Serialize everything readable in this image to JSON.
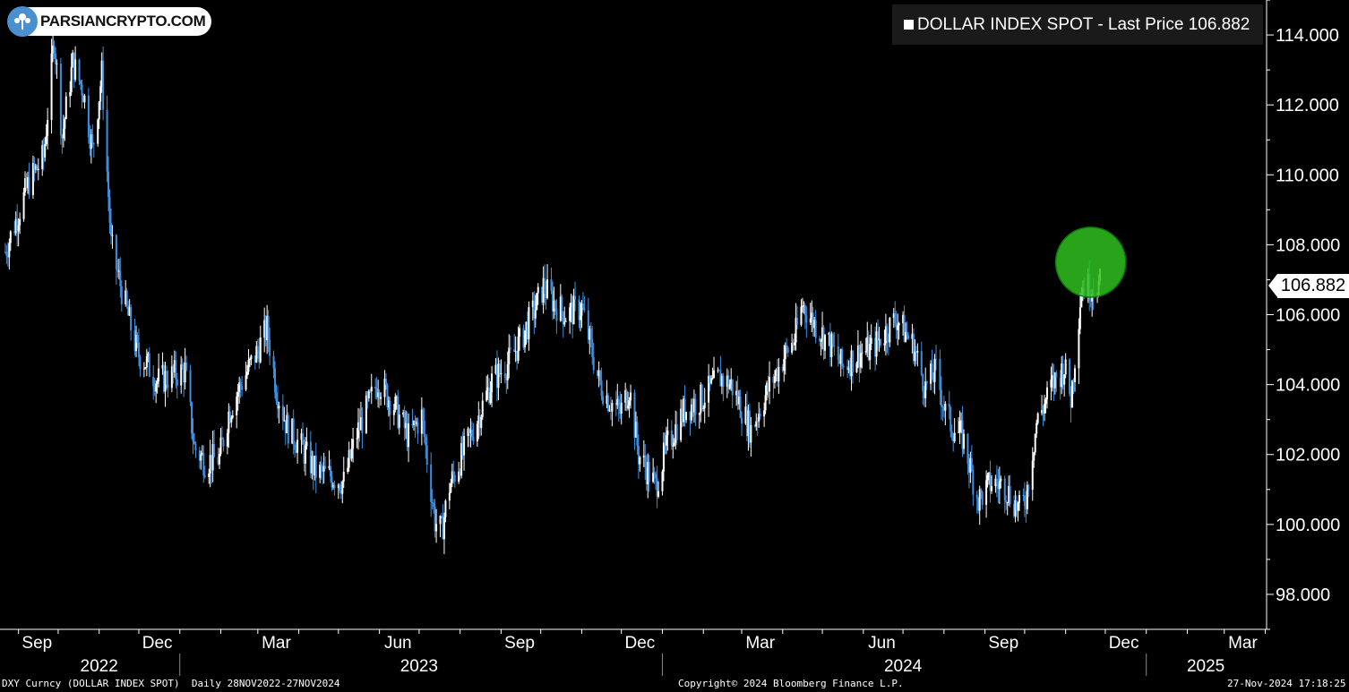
{
  "logo": {
    "text": "PARSIANCRYPTO.COM"
  },
  "legend": {
    "text": "DOLLAR INDEX SPOT - Last Price 106.882"
  },
  "last_price_label": "106.882",
  "footer": {
    "left": "DXY Curncy (DOLLAR INDEX SPOT)  Daily 28NOV2022-27NOV2024",
    "center": "Copyright© 2024 Bloomberg Finance L.P.",
    "right": "27-Nov-2024 17:18:25"
  },
  "colors": {
    "background": "#000000",
    "candle_up": "#ffffff",
    "candle_down": "#3d8fe0",
    "highlight": "#2fbf1f"
  },
  "chart_data": {
    "type": "line",
    "style": "candlestick",
    "series": [
      {
        "name": "DOLLAR INDEX SPOT",
        "x": [
          "2022-08-22",
          "2022-09-01",
          "2022-09-09",
          "2022-09-20",
          "2022-09-28",
          "2022-10-04",
          "2022-10-12",
          "2022-10-20",
          "2022-10-27",
          "2022-11-03",
          "2022-11-10",
          "2022-11-18",
          "2022-11-30",
          "2022-12-07",
          "2022-12-15",
          "2022-12-22",
          "2023-01-05",
          "2023-01-12",
          "2023-01-20",
          "2023-01-31",
          "2023-02-07",
          "2023-02-16",
          "2023-02-28",
          "2023-03-08",
          "2023-03-15",
          "2023-03-23",
          "2023-04-03",
          "2023-04-14",
          "2023-04-25",
          "2023-05-05",
          "2023-05-15",
          "2023-05-31",
          "2023-06-12",
          "2023-06-23",
          "2023-07-03",
          "2023-07-13",
          "2023-07-18",
          "2023-07-24",
          "2023-08-03",
          "2023-08-15",
          "2023-08-25",
          "2023-09-06",
          "2023-09-15",
          "2023-09-27",
          "2023-10-03",
          "2023-10-12",
          "2023-10-20",
          "2023-11-01",
          "2023-11-14",
          "2023-11-21",
          "2023-11-30",
          "2023-12-07",
          "2023-12-14",
          "2023-12-27",
          "2024-01-05",
          "2024-01-18",
          "2024-01-31",
          "2024-02-14",
          "2024-02-22",
          "2024-03-08",
          "2024-03-19",
          "2024-04-02",
          "2024-04-10",
          "2024-04-16",
          "2024-04-26",
          "2024-05-06",
          "2024-05-16",
          "2024-05-29",
          "2024-06-07",
          "2024-06-26",
          "2024-07-09",
          "2024-07-18",
          "2024-07-26",
          "2024-08-02",
          "2024-08-07",
          "2024-08-15",
          "2024-08-27",
          "2024-09-06",
          "2024-09-16",
          "2024-09-27",
          "2024-10-02",
          "2024-10-10",
          "2024-10-22",
          "2024-10-31",
          "2024-11-05",
          "2024-11-13",
          "2024-11-20",
          "2024-11-27"
        ],
        "values": [
          107.8,
          108.9,
          109.8,
          110.5,
          113.9,
          111.1,
          113.2,
          112.4,
          110.7,
          112.9,
          108.0,
          106.7,
          104.9,
          104.6,
          104.1,
          104.2,
          104.4,
          102.2,
          101.8,
          101.9,
          103.2,
          104.0,
          104.9,
          105.6,
          103.9,
          102.8,
          102.2,
          101.5,
          101.4,
          101.2,
          102.6,
          104.1,
          103.4,
          102.5,
          103.1,
          100.1,
          99.8,
          101.1,
          102.0,
          103.1,
          104.1,
          104.6,
          105.2,
          106.2,
          106.8,
          106.3,
          106.0,
          106.2,
          104.1,
          103.6,
          103.2,
          103.9,
          102.0,
          101.1,
          102.3,
          103.3,
          103.6,
          104.2,
          104.0,
          102.7,
          103.7,
          104.8,
          105.3,
          106.3,
          105.7,
          105.2,
          104.5,
          104.9,
          105.0,
          105.9,
          105.1,
          103.9,
          104.4,
          103.2,
          102.8,
          102.5,
          100.7,
          101.2,
          101.1,
          100.4,
          100.8,
          102.9,
          104.0,
          104.5,
          103.6,
          106.8,
          106.8,
          106.88
        ],
        "marker_radius_value": 1.0
      }
    ],
    "y_ticks": [
      "98.000",
      "100.000",
      "102.000",
      "104.000",
      "106.000",
      "108.000",
      "110.000",
      "112.000",
      "114.000"
    ],
    "y_tick_values": [
      98,
      100,
      102,
      104,
      106,
      108,
      110,
      112,
      114
    ],
    "ylim": [
      97.0,
      115.0
    ],
    "x_month_ticks": [
      {
        "label": "Sep",
        "date": "2022-09-15"
      },
      {
        "label": "Dec",
        "date": "2022-12-15"
      },
      {
        "label": "Mar",
        "date": "2023-03-15"
      },
      {
        "label": "Jun",
        "date": "2023-06-15"
      },
      {
        "label": "Sep",
        "date": "2023-09-15"
      },
      {
        "label": "Dec",
        "date": "2023-12-15"
      },
      {
        "label": "Mar",
        "date": "2024-03-15"
      },
      {
        "label": "Jun",
        "date": "2024-06-15"
      },
      {
        "label": "Sep",
        "date": "2024-09-15"
      },
      {
        "label": "Dec",
        "date": "2024-12-15"
      },
      {
        "label": "Mar",
        "date": "2025-03-15"
      }
    ],
    "x_year_labels": [
      {
        "label": "2022",
        "date": "2022-11-01"
      },
      {
        "label": "2023",
        "date": "2023-07-01"
      },
      {
        "label": "2024",
        "date": "2024-07-01"
      },
      {
        "label": "2025",
        "date": "2025-02-15"
      }
    ],
    "year_boundaries": [
      "2023-01-01",
      "2024-01-01",
      "2025-01-01"
    ],
    "xlim": [
      "2022-08-18",
      "2025-04-02"
    ],
    "highlight": {
      "center": {
        "date": "2024-11-20",
        "value": 107.5
      },
      "shape": "circle"
    },
    "legend_position": "top-right",
    "grid": false
  }
}
